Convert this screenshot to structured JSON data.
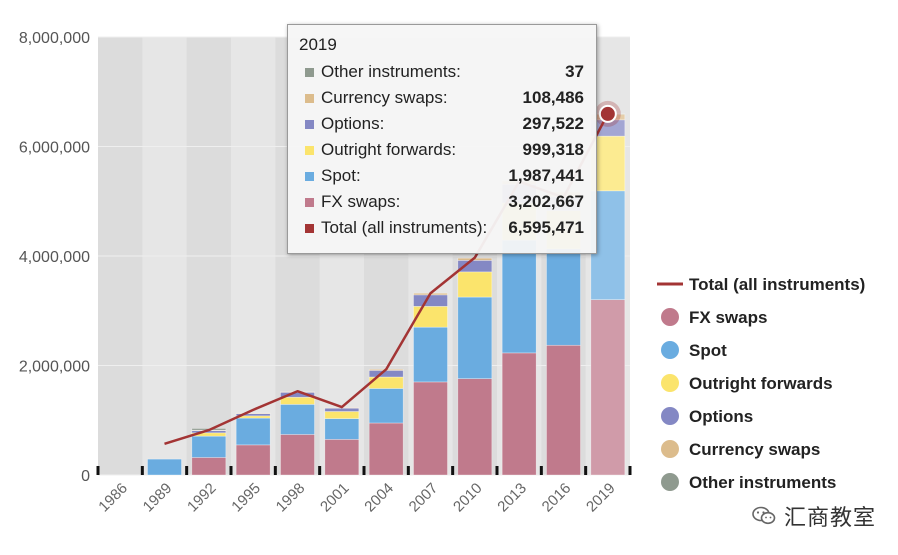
{
  "chart_data": {
    "type": "bar",
    "stacked": true,
    "categories": [
      "1986",
      "1989",
      "1992",
      "1995",
      "1998",
      "2001",
      "2004",
      "2007",
      "2010",
      "2013",
      "2016",
      "2019"
    ],
    "ylim": [
      0,
      8000000
    ],
    "yticks": [
      "0",
      "2,000,000",
      "4,000,000",
      "6,000,000",
      "8,000,000"
    ],
    "ytick_values": [
      0,
      2000000,
      4000000,
      6000000,
      8000000
    ],
    "grid": true,
    "legend_position": "right",
    "series": [
      {
        "name": "FX swaps",
        "color": "#c07a8c",
        "values": [
          0,
          0,
          320000,
          550000,
          740000,
          650000,
          950000,
          1700000,
          1760000,
          2230000,
          2370000,
          3202667
        ]
      },
      {
        "name": "Spot",
        "color": "#6aace0",
        "values": [
          0,
          290000,
          390000,
          490000,
          550000,
          380000,
          630000,
          1000000,
          1490000,
          2060000,
          1760000,
          1987441
        ]
      },
      {
        "name": "Outright forwards",
        "color": "#fbe46c",
        "values": [
          0,
          0,
          60000,
          40000,
          130000,
          130000,
          210000,
          380000,
          460000,
          680000,
          700000,
          999318
        ]
      },
      {
        "name": "Options",
        "color": "#8488c4",
        "values": [
          0,
          0,
          40000,
          40000,
          90000,
          60000,
          120000,
          210000,
          210000,
          340000,
          250000,
          297522
        ]
      },
      {
        "name": "Currency swaps",
        "color": "#dcbc8c",
        "values": [
          0,
          0,
          10000,
          10000,
          10000,
          10000,
          20000,
          30000,
          40000,
          60000,
          90000,
          108486
        ]
      },
      {
        "name": "Other instruments",
        "color": "#8f9a8f",
        "values": [
          0,
          0,
          30000,
          0,
          0,
          0,
          0,
          0,
          0,
          0,
          0,
          37
        ]
      }
    ],
    "line_series": {
      "name": "Total (all instruments)",
      "color": "#a33434",
      "values": [
        null,
        570000,
        820000,
        1190000,
        1530000,
        1240000,
        1930000,
        3320000,
        3970000,
        5360000,
        5070000,
        6595471
      ]
    },
    "highlight_category": "2019"
  },
  "legend": {
    "items": [
      {
        "label": "Total (all instruments)",
        "color": "#a33434",
        "kind": "line"
      },
      {
        "label": "FX swaps",
        "color": "#c07a8c",
        "kind": "dot"
      },
      {
        "label": "Spot",
        "color": "#6aace0",
        "kind": "dot"
      },
      {
        "label": "Outright forwards",
        "color": "#fbe46c",
        "kind": "dot"
      },
      {
        "label": "Options",
        "color": "#8488c4",
        "kind": "dot"
      },
      {
        "label": "Currency swaps",
        "color": "#dcbc8c",
        "kind": "dot"
      },
      {
        "label": "Other instruments",
        "color": "#8f9a8f",
        "kind": "dot"
      }
    ]
  },
  "tooltip": {
    "title": "2019",
    "rows": [
      {
        "label": "Other instruments:",
        "value": "37",
        "color": "#8f9a8f"
      },
      {
        "label": "Currency swaps:",
        "value": "108,486",
        "color": "#dcbc8c"
      },
      {
        "label": "Options:",
        "value": "297,522",
        "color": "#8488c4"
      },
      {
        "label": "Outright forwards:",
        "value": "999,318",
        "color": "#fbe46c"
      },
      {
        "label": "Spot:",
        "value": "1,987,441",
        "color": "#6aace0"
      },
      {
        "label": "FX swaps:",
        "value": "3,202,667",
        "color": "#c07a8c"
      },
      {
        "label": "Total (all instruments):",
        "value": "6,595,471",
        "color": "#a33434"
      }
    ]
  },
  "watermark": {
    "text": "汇商教室",
    "icon": "wechat-icon"
  }
}
